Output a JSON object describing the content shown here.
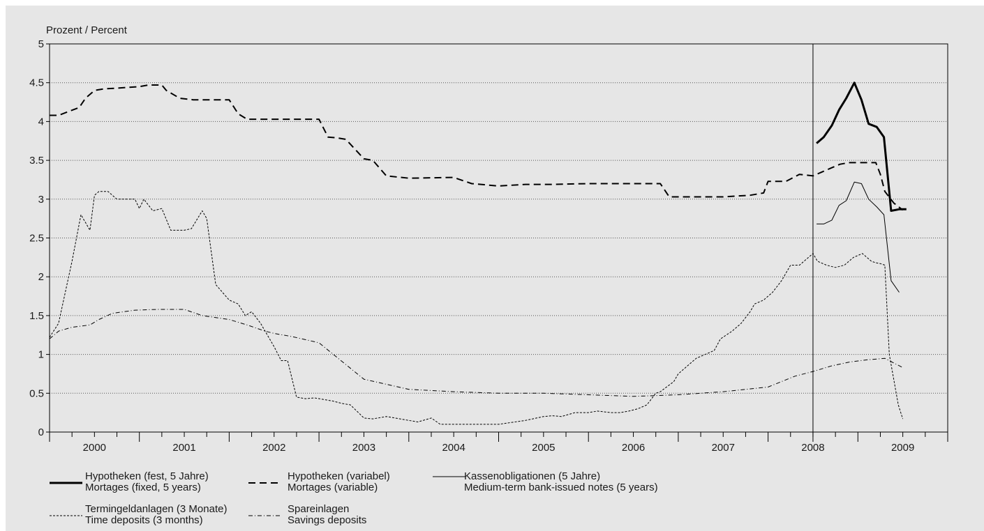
{
  "chart_data": {
    "type": "line",
    "title": "",
    "ylabel": "Prozent / Percent",
    "xlabel": "",
    "ylim": [
      0,
      5
    ],
    "xlim": [
      1999.5,
      2009.5
    ],
    "grid": true,
    "legend_position": "bottom",
    "y_ticks": [
      "0",
      "0.5",
      "1",
      "1.5",
      "2",
      "2.5",
      "3",
      "3.5",
      "4",
      "4.5",
      "5"
    ],
    "x_tick_labels": [
      "2000",
      "2001",
      "2002",
      "2003",
      "2004",
      "2005",
      "2006",
      "2007",
      "2008",
      "2009"
    ],
    "annotations": {
      "vertical_line_at": 2008.0
    },
    "series": [
      {
        "name": "Hypotheken (fest, 5 Jahre)",
        "name_en": "Mortages (fixed, 5 years)",
        "style": "thick-solid",
        "color": "#000000",
        "x": [
          2008.04,
          2008.12,
          2008.21,
          2008.29,
          2008.37,
          2008.46,
          2008.54,
          2008.62,
          2008.71,
          2008.79,
          2008.87,
          2008.96,
          2009.04
        ],
        "y": [
          3.72,
          3.8,
          3.95,
          4.15,
          4.3,
          4.5,
          4.28,
          3.97,
          3.93,
          3.8,
          2.85,
          2.87,
          2.87
        ]
      },
      {
        "name": "Hypotheken (variabel)",
        "name_en": "Mortages (variable)",
        "style": "dashed",
        "color": "#000000",
        "x": [
          1999.5,
          1999.6,
          1999.83,
          1999.9,
          2000.0,
          2000.1,
          2000.25,
          2000.5,
          2000.6,
          2000.75,
          2000.8,
          2000.95,
          2001.1,
          2001.25,
          2001.3,
          2001.4,
          2001.5,
          2001.6,
          2001.7,
          2001.9,
          2002.1,
          2002.2,
          2002.3,
          2002.4,
          2002.5,
          2002.6,
          2002.7,
          2002.8,
          2003.0,
          2003.1,
          2003.25,
          2003.5,
          2004.0,
          2004.2,
          2004.5,
          2004.8,
          2005.0,
          2005.08,
          2005.5,
          2006.0,
          2006.3,
          2006.4,
          2006.6,
          2006.8,
          2006.92,
          2007.0,
          2007.3,
          2007.45,
          2007.5,
          2007.7,
          2007.85,
          2008.0,
          2008.1,
          2008.2,
          2008.3,
          2008.4,
          2008.5,
          2008.6,
          2008.7,
          2008.75,
          2008.8,
          2008.9,
          2009.0
        ],
        "y": [
          4.08,
          4.08,
          4.18,
          4.3,
          4.4,
          4.42,
          4.43,
          4.45,
          4.47,
          4.47,
          4.4,
          4.3,
          4.28,
          4.28,
          4.28,
          4.28,
          4.28,
          4.1,
          4.03,
          4.03,
          4.03,
          4.03,
          4.03,
          4.03,
          4.03,
          3.8,
          3.79,
          3.77,
          3.52,
          3.5,
          3.3,
          3.27,
          3.28,
          3.2,
          3.17,
          3.19,
          3.19,
          3.19,
          3.2,
          3.2,
          3.2,
          3.03,
          3.03,
          3.03,
          3.03,
          3.03,
          3.05,
          3.08,
          3.23,
          3.23,
          3.32,
          3.3,
          3.35,
          3.4,
          3.45,
          3.47,
          3.47,
          3.47,
          3.47,
          3.32,
          3.1,
          2.95,
          2.86
        ]
      },
      {
        "name": "Kassenobligationen (5 Jahre)",
        "name_en": "Medium-term bank-issued notes (5 years)",
        "style": "thin-solid",
        "color": "#000000",
        "x": [
          2008.04,
          2008.12,
          2008.21,
          2008.29,
          2008.37,
          2008.46,
          2008.54,
          2008.62,
          2008.71,
          2008.79,
          2008.87,
          2008.96
        ],
        "y": [
          2.68,
          2.68,
          2.73,
          2.92,
          2.98,
          3.22,
          3.2,
          3.0,
          2.9,
          2.8,
          1.95,
          1.8
        ]
      },
      {
        "name": "Termingeldanlagen (3 Monate)",
        "name_en": "Time deposits (3 months)",
        "style": "short-dashed",
        "color": "#000000",
        "x": [
          1999.5,
          1999.6,
          1999.75,
          1999.85,
          1999.95,
          2000.0,
          2000.05,
          2000.15,
          2000.25,
          2000.35,
          2000.45,
          2000.5,
          2000.55,
          2000.65,
          2000.75,
          2000.85,
          2000.95,
          2001.0,
          2001.08,
          2001.2,
          2001.25,
          2001.35,
          2001.5,
          2001.6,
          2001.68,
          2001.75,
          2001.85,
          2001.95,
          2002.0,
          2002.08,
          2002.15,
          2002.25,
          2002.35,
          2002.45,
          2002.55,
          2002.65,
          2002.75,
          2002.85,
          2003.0,
          2003.1,
          2003.25,
          2003.35,
          2003.5,
          2003.6,
          2003.75,
          2003.85,
          2003.95,
          2004.08,
          2004.2,
          2004.5,
          2004.8,
          2005.0,
          2005.1,
          2005.2,
          2005.35,
          2005.5,
          2005.6,
          2005.75,
          2005.85,
          2005.95,
          2006.05,
          2006.15,
          2006.25,
          2006.3,
          2006.45,
          2006.5,
          2006.6,
          2006.7,
          2006.8,
          2006.9,
          2006.97,
          2007.1,
          2007.2,
          2007.3,
          2007.35,
          2007.45,
          2007.55,
          2007.65,
          2007.75,
          2007.85,
          2008.0,
          2008.05,
          2008.15,
          2008.25,
          2008.35,
          2008.45,
          2008.55,
          2008.65,
          2008.7,
          2008.75,
          2008.8,
          2008.85,
          2008.95,
          2009.0
        ],
        "y": [
          1.22,
          1.4,
          2.2,
          2.8,
          2.6,
          3.05,
          3.1,
          3.1,
          3.0,
          3.0,
          3.0,
          2.88,
          3.0,
          2.85,
          2.88,
          2.6,
          2.6,
          2.6,
          2.62,
          2.85,
          2.75,
          1.9,
          1.7,
          1.65,
          1.5,
          1.55,
          1.4,
          1.2,
          1.1,
          0.92,
          0.92,
          0.45,
          0.43,
          0.44,
          0.42,
          0.4,
          0.37,
          0.35,
          0.18,
          0.17,
          0.2,
          0.18,
          0.15,
          0.13,
          0.18,
          0.1,
          0.1,
          0.1,
          0.1,
          0.1,
          0.15,
          0.2,
          0.21,
          0.2,
          0.25,
          0.25,
          0.27,
          0.25,
          0.25,
          0.27,
          0.3,
          0.35,
          0.5,
          0.52,
          0.65,
          0.75,
          0.85,
          0.95,
          1.0,
          1.05,
          1.2,
          1.3,
          1.4,
          1.55,
          1.65,
          1.7,
          1.8,
          1.95,
          2.15,
          2.15,
          2.3,
          2.2,
          2.15,
          2.12,
          2.15,
          2.25,
          2.3,
          2.2,
          2.18,
          2.17,
          2.15,
          1.0,
          0.35,
          0.17
        ]
      },
      {
        "name": "Spareinlagen",
        "name_en": "Savings deposits",
        "style": "dash-dot",
        "color": "#000000",
        "x": [
          1999.5,
          1999.6,
          1999.75,
          1999.95,
          2000.05,
          2000.2,
          2000.45,
          2000.7,
          2001.0,
          2001.2,
          2001.5,
          2001.7,
          2001.9,
          2002.0,
          2002.2,
          2002.5,
          2003.0,
          2003.5,
          2004.0,
          2004.5,
          2005.0,
          2005.5,
          2006.0,
          2006.5,
          2007.0,
          2007.5,
          2007.8,
          2008.0,
          2008.2,
          2008.4,
          2008.6,
          2008.8,
          2009.0
        ],
        "y": [
          1.2,
          1.3,
          1.35,
          1.38,
          1.45,
          1.53,
          1.57,
          1.58,
          1.58,
          1.5,
          1.45,
          1.38,
          1.3,
          1.27,
          1.23,
          1.15,
          0.68,
          0.55,
          0.52,
          0.5,
          0.5,
          0.48,
          0.46,
          0.48,
          0.52,
          0.58,
          0.72,
          0.78,
          0.85,
          0.9,
          0.93,
          0.95,
          0.83
        ]
      }
    ]
  }
}
